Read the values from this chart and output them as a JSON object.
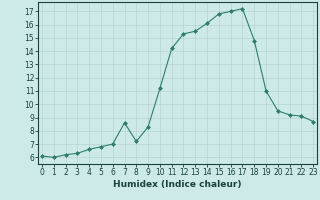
{
  "x": [
    0,
    1,
    2,
    3,
    4,
    5,
    6,
    7,
    8,
    9,
    10,
    11,
    12,
    13,
    14,
    15,
    16,
    17,
    18,
    19,
    20,
    21,
    22,
    23
  ],
  "y": [
    6.1,
    6.0,
    6.2,
    6.3,
    6.6,
    6.8,
    7.0,
    8.6,
    7.2,
    8.3,
    11.2,
    14.2,
    15.3,
    15.5,
    16.1,
    16.8,
    17.0,
    17.2,
    14.8,
    11.0,
    9.5,
    9.2,
    9.1,
    8.7
  ],
  "xlim": [
    -0.3,
    23.3
  ],
  "ylim": [
    5.5,
    17.7
  ],
  "yticks": [
    6,
    7,
    8,
    9,
    10,
    11,
    12,
    13,
    14,
    15,
    16,
    17
  ],
  "xticks": [
    0,
    1,
    2,
    3,
    4,
    5,
    6,
    7,
    8,
    9,
    10,
    11,
    12,
    13,
    14,
    15,
    16,
    17,
    18,
    19,
    20,
    21,
    22,
    23
  ],
  "xlabel": "Humidex (Indice chaleur)",
  "line_color": "#2e7d6e",
  "marker": "D",
  "marker_size": 2.0,
  "bg_color": "#ceeae8",
  "grid_color": "#b8d4d2",
  "axis_label_fontsize": 6.5,
  "tick_fontsize": 5.5,
  "title": ""
}
